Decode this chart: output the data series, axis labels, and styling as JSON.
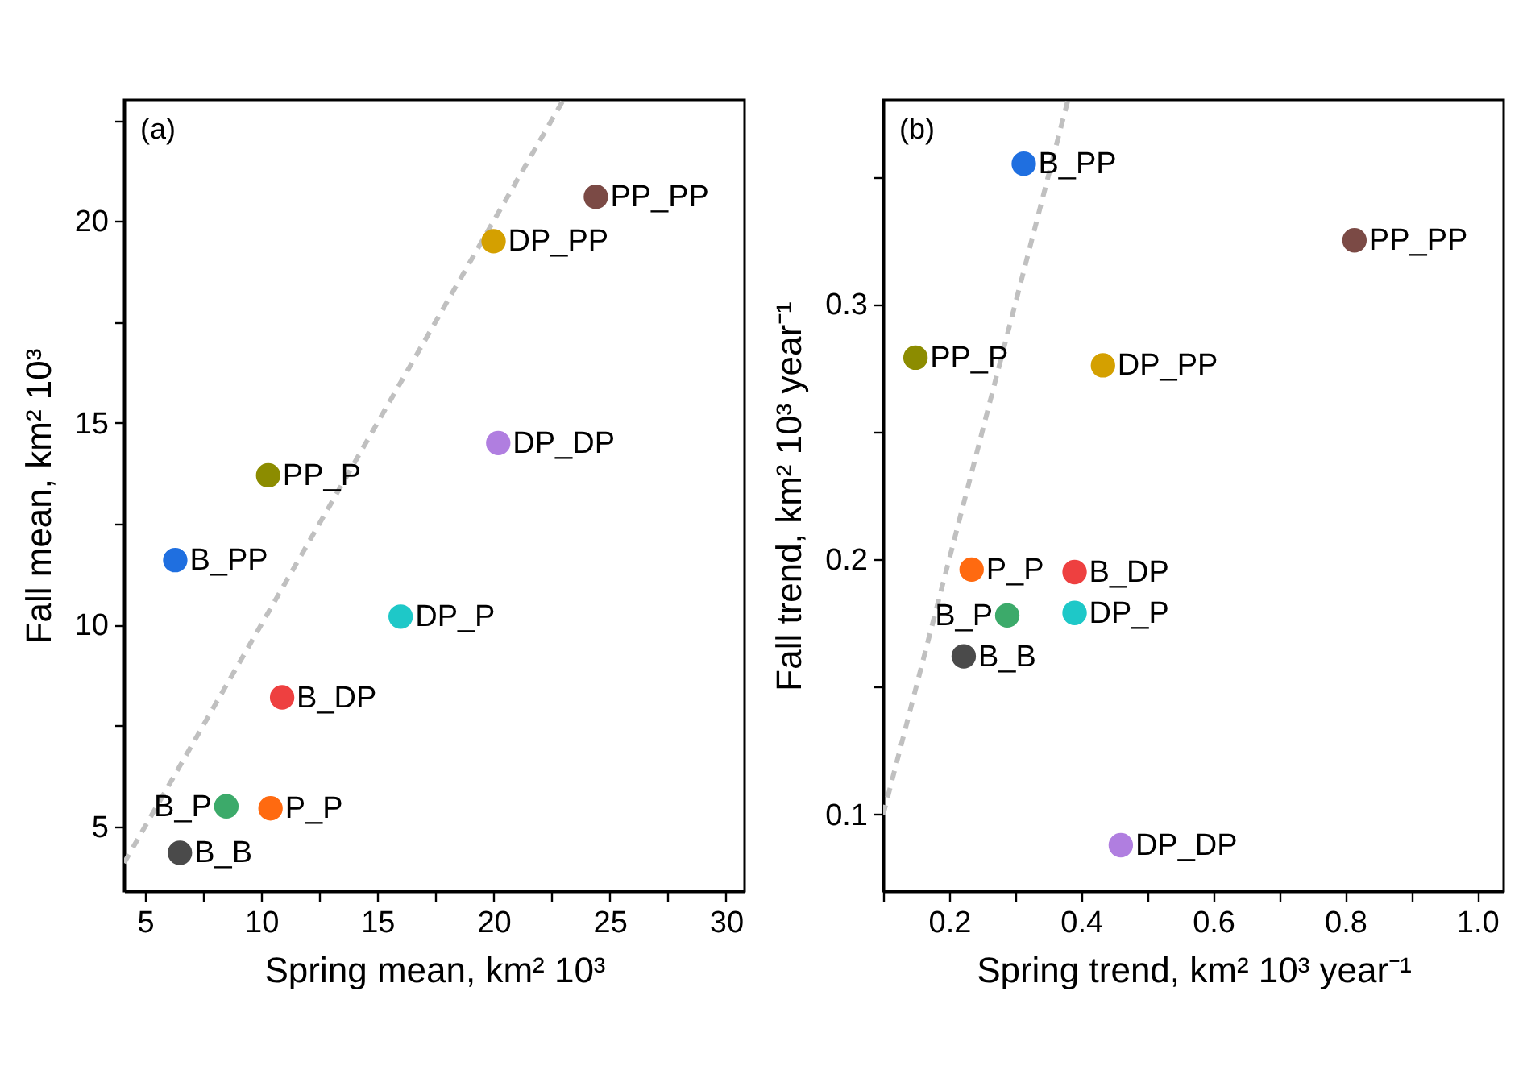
{
  "chart_data": [
    {
      "type": "scatter",
      "xlabel": "Spring mean, km² 10³",
      "ylabel": "Fall mean, km² 10³",
      "annotations": [
        "(a)"
      ],
      "marker": "circle",
      "xlim": [
        4.1,
        30.8
      ],
      "ylim": [
        3.4,
        23
      ],
      "xticks": [
        5,
        {
          "value": 7.5,
          "label": null
        },
        10,
        {
          "value": 12.5,
          "label": null
        },
        15,
        {
          "value": 17.5,
          "label": null
        },
        20,
        {
          "value": 22.5,
          "label": null
        },
        25,
        {
          "value": 27.5,
          "label": null
        },
        30
      ],
      "yticks": [
        5,
        {
          "value": 7.5,
          "label": null
        },
        10,
        {
          "value": 12.5,
          "label": null
        },
        15,
        {
          "value": 17.5,
          "label": null
        },
        20,
        {
          "value": 22.5,
          "label": null
        }
      ],
      "series": [
        {
          "type": "line",
          "color": "#c0c0c0",
          "line_style": "dashed",
          "marker": "none",
          "x": [
            4.1,
            23
          ],
          "values": [
            4.1,
            23
          ]
        },
        {
          "name": "PP_PP",
          "color": "#7b4a45",
          "x": [
            24.4
          ],
          "values": [
            20.6
          ]
        },
        {
          "name": "DP_PP",
          "color": "#d4a000",
          "x": [
            20.0
          ],
          "values": [
            19.5
          ]
        },
        {
          "name": "DP_DP",
          "color": "#b07ee0",
          "x": [
            20.2
          ],
          "values": [
            14.5
          ]
        },
        {
          "name": "PP_P",
          "color": "#8c8c00",
          "x": [
            10.3
          ],
          "values": [
            13.7
          ]
        },
        {
          "name": "B_PP",
          "color": "#1f6fe0",
          "x": [
            6.3
          ],
          "values": [
            11.6
          ]
        },
        {
          "name": "DP_P",
          "color": "#1ec8c8",
          "x": [
            16.0
          ],
          "values": [
            10.2
          ]
        },
        {
          "name": "B_DP",
          "color": "#ee4040",
          "x": [
            10.9
          ],
          "values": [
            8.2
          ]
        },
        {
          "name": "B_P",
          "color": "#3caa6a",
          "x": [
            8.5
          ],
          "values": [
            5.5
          ]
        },
        {
          "name": "P_P",
          "color": "#ff6a10",
          "x": [
            10.4
          ],
          "values": [
            5.45
          ]
        },
        {
          "name": "B_B",
          "color": "#4a4a4a",
          "x": [
            6.5
          ],
          "values": [
            4.35
          ]
        }
      ]
    },
    {
      "type": "scatter",
      "xlabel": "Spring trend, km² 10³ year⁻¹",
      "ylabel": "Fall trend, km² 10³ year⁻¹",
      "annotations": [
        "(b)"
      ],
      "marker": "circle",
      "xlim": [
        0.1,
        1.04
      ],
      "ylim": [
        0.07,
        0.38
      ],
      "xticks": [
        {
          "value": 0.1,
          "label": null
        },
        0.2,
        {
          "value": 0.3,
          "label": null
        },
        0.4,
        {
          "value": 0.5,
          "label": null
        },
        0.6,
        {
          "value": 0.7,
          "label": null
        },
        0.8,
        {
          "value": 0.9,
          "label": null
        },
        {
          "value": 1,
          "label": "1.0"
        }
      ],
      "yticks": [
        0.1,
        {
          "value": 0.15,
          "label": null
        },
        0.2,
        {
          "value": 0.25,
          "label": null
        },
        0.3,
        {
          "value": 0.35,
          "label": null
        }
      ],
      "series": [
        {
          "type": "line",
          "color": "#c0c0c0",
          "line_style": "dashed",
          "marker": "none",
          "x": [
            0.1,
            0.38
          ],
          "values": [
            0.1,
            0.38
          ]
        },
        {
          "name": "B_PP",
          "color": "#1f6fe0",
          "x": [
            0.313
          ],
          "values": [
            0.355
          ]
        },
        {
          "name": "PP_PP",
          "color": "#7b4a45",
          "x": [
            0.814
          ],
          "values": [
            0.325
          ]
        },
        {
          "name": "PP_P",
          "color": "#8c8c00",
          "x": [
            0.149
          ],
          "values": [
            0.279
          ]
        },
        {
          "name": "DP_PP",
          "color": "#d4a000",
          "x": [
            0.433
          ],
          "values": [
            0.276
          ]
        },
        {
          "name": "P_P",
          "color": "#ff6a10",
          "x": [
            0.234
          ],
          "values": [
            0.196
          ]
        },
        {
          "name": "B_DP",
          "color": "#ee4040",
          "x": [
            0.39
          ],
          "values": [
            0.195
          ]
        },
        {
          "name": "B_P",
          "color": "#3caa6a",
          "x": [
            0.288
          ],
          "values": [
            0.178
          ]
        },
        {
          "name": "DP_P",
          "color": "#1ec8c8",
          "x": [
            0.39
          ],
          "values": [
            0.179
          ]
        },
        {
          "name": "B_B",
          "color": "#4a4a4a",
          "x": [
            0.222
          ],
          "values": [
            0.162
          ]
        },
        {
          "name": "DP_DP",
          "color": "#b07ee0",
          "x": [
            0.46
          ],
          "values": [
            0.088
          ]
        }
      ]
    }
  ]
}
